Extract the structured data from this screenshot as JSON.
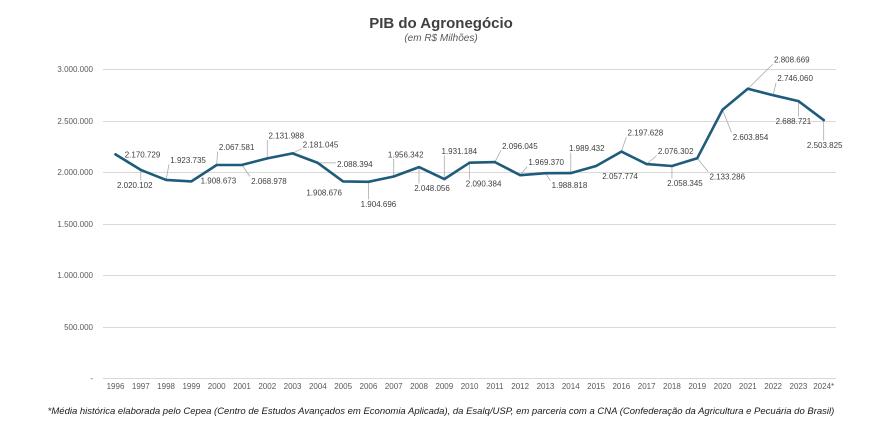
{
  "chart_data": {
    "type": "line",
    "title": "PIB do Agronegócio",
    "subtitle": "(em R$ Milhões)",
    "xlabel": "",
    "ylabel": "",
    "categories": [
      "1996",
      "1997",
      "1998",
      "1999",
      "2000",
      "2001",
      "2002",
      "2003",
      "2004",
      "2005",
      "2006",
      "2007",
      "2008",
      "2009",
      "2010",
      "2011",
      "2012",
      "2013",
      "2014",
      "2015",
      "2016",
      "2017",
      "2018",
      "2019",
      "2020",
      "2021",
      "2022",
      "2023",
      "2024*"
    ],
    "series": [
      {
        "values": [
          2170729,
          2020102,
          1923735,
          1908673,
          2067581,
          2068978,
          2131988,
          2181045,
          2088394,
          1908676,
          1904696,
          1956342,
          2048056,
          1931184,
          2090384,
          2096045,
          1969370,
          1988818,
          1989432,
          2057774,
          2197628,
          2076302,
          2058345,
          2133286,
          2603854,
          2808669,
          2746060,
          2688721,
          2503825
        ],
        "color": "#1F5B7A"
      }
    ],
    "ylim": [
      0,
      3000000
    ],
    "yticks": [
      0,
      500000,
      1000000,
      1500000,
      2000000,
      2500000,
      3000000
    ],
    "ytick_labels": [
      "-",
      "500.000",
      "1.000.000",
      "1.500.000",
      "2.000.000",
      "2.500.000",
      "3.000.000"
    ],
    "data_labels": true,
    "grid": true,
    "legend": "none",
    "note": "*Média histórica elaborada pelo Cepea (Centro de Estudos Avançados em Economia Aplicada), da Esalq/USP, em parceria com a CNA (Confederação da Agricultura e Pecuária do Brasil)"
  },
  "colors": {
    "line": "#1F5B7A",
    "grid": "#D9D9D9",
    "leader": "#A6A6A6"
  }
}
